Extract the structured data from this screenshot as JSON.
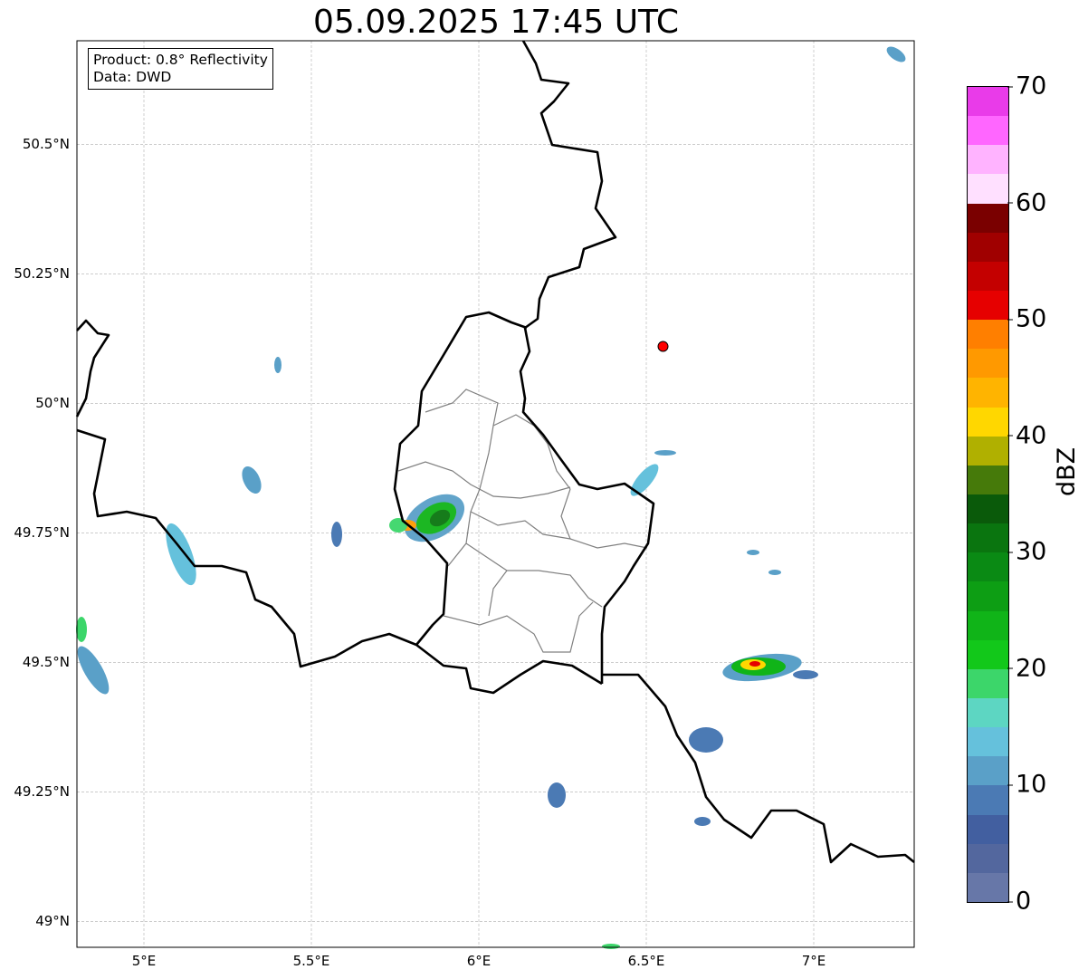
{
  "title": "05.09.2025 17:45 UTC",
  "legend": {
    "product": "Product: 0.8° Reflectivity",
    "data": "Data: DWD"
  },
  "axes": {
    "lat_labels": [
      {
        "v": 50.5,
        "t": "50.5°N"
      },
      {
        "v": 50.25,
        "t": "50.25°N"
      },
      {
        "v": 50.0,
        "t": "50°N"
      },
      {
        "v": 49.75,
        "t": "49.75°N"
      },
      {
        "v": 49.5,
        "t": "49.5°N"
      },
      {
        "v": 49.25,
        "t": "49.25°N"
      },
      {
        "v": 49.0,
        "t": "49°N"
      }
    ],
    "lon_labels": [
      {
        "v": 5.0,
        "t": "5°E"
      },
      {
        "v": 5.5,
        "t": "5.5°E"
      },
      {
        "v": 6.0,
        "t": "6°E"
      },
      {
        "v": 6.5,
        "t": "6.5°E"
      },
      {
        "v": 7.0,
        "t": "7°E"
      }
    ],
    "lon_range": [
      4.8,
      7.3
    ],
    "lat_range": [
      48.95,
      50.7
    ]
  },
  "marker": {
    "lon": 6.55,
    "lat": 50.11,
    "color": "#ff0000"
  },
  "colorbar": {
    "label": "dBZ",
    "min": 0,
    "max": 70,
    "step": 2.5,
    "ticks": [
      "0",
      "10",
      "20",
      "30",
      "40",
      "50",
      "60",
      "70"
    ],
    "colors": [
      "#6777a8",
      "#53679e",
      "#425fa0",
      "#4b7ab4",
      "#5aa0c8",
      "#65c1dc",
      "#5dd6c2",
      "#3cd66a",
      "#12c81a",
      "#10b418",
      "#0d9e14",
      "#0a8a14",
      "#0a750f",
      "#0a5a0a",
      "#467a0a",
      "#b0b000",
      "#ffd700",
      "#ffb400",
      "#ff9900",
      "#ff7f00",
      "#e60000",
      "#c40000",
      "#a00000",
      "#7a0000",
      "#ffe0ff",
      "#ffb3ff",
      "#ff66ff",
      "#e93be9"
    ]
  }
}
